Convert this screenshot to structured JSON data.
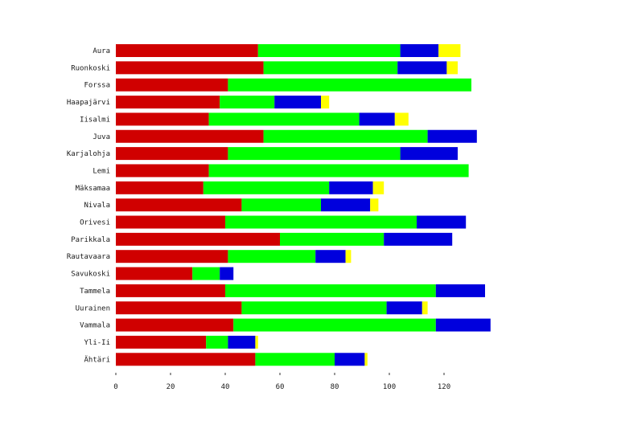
{
  "chart_data": {
    "type": "bar",
    "orientation": "horizontal",
    "stacked": true,
    "title": "",
    "xlabel": "",
    "ylabel": "",
    "xlim": [
      0,
      140
    ],
    "xticks": [
      0,
      20,
      40,
      60,
      80,
      100,
      120
    ],
    "xtick_labels": [
      "0",
      "20",
      "40",
      "60",
      "80",
      "100",
      "120"
    ],
    "grid": false,
    "legend": "none",
    "categories": [
      "Aura",
      "Ruonkoski",
      "Forssa",
      "Haapajärvi",
      "Iisalmi",
      "Juva",
      "Karjalohja",
      "Lemi",
      "Mäksamaa",
      "Nivala",
      "Orivesi",
      "Parikkala",
      "Rautavaara",
      "Savukoski",
      "Tammela",
      "Uurainen",
      "Vammala",
      "Yli-Ii",
      "Ähtäri"
    ],
    "series": [
      {
        "color": "#d00000",
        "values": [
          52,
          54,
          41,
          38,
          34,
          54,
          41,
          34,
          32,
          46,
          40,
          60,
          41,
          28,
          40,
          46,
          43,
          33,
          51
        ]
      },
      {
        "color": "#00ff00",
        "values": [
          52,
          49,
          89,
          20,
          55,
          60,
          63,
          95,
          46,
          29,
          70,
          38,
          32,
          10,
          77,
          53,
          74,
          8,
          29
        ]
      },
      {
        "color": "#0000dd",
        "values": [
          14,
          18,
          0,
          17,
          13,
          18,
          21,
          0,
          16,
          18,
          18,
          25,
          11,
          5,
          18,
          13,
          20,
          10,
          11
        ]
      },
      {
        "color": "#ffff00",
        "values": [
          8,
          4,
          0,
          3,
          5,
          0,
          0,
          0,
          4,
          3,
          0,
          0,
          2,
          0,
          0,
          2,
          0,
          1,
          1
        ]
      }
    ]
  }
}
